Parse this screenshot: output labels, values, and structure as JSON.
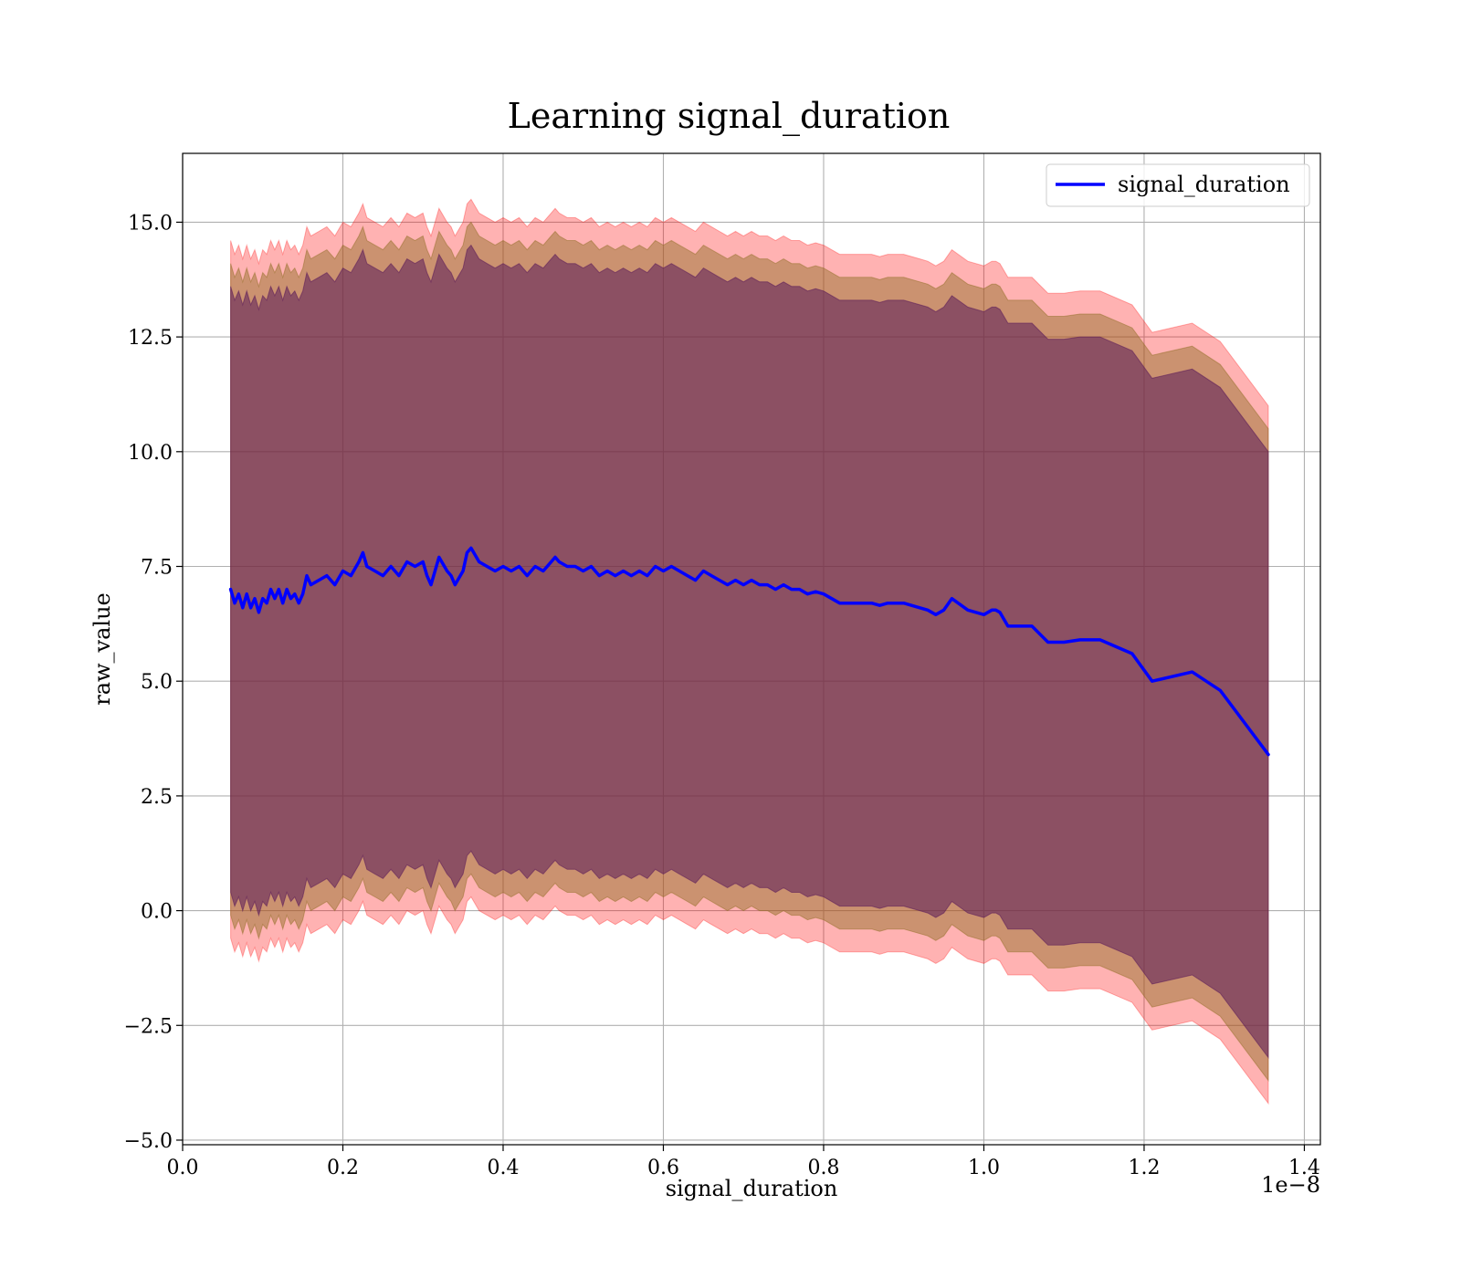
{
  "chart_data": {
    "type": "line",
    "title": "Learning signal_duration",
    "xlabel": "signal_duration",
    "ylabel": "raw_value",
    "x_offset_text": "1e−8",
    "xlim": [
      0.0,
      1.42
    ],
    "ylim": [
      -5.1,
      16.5
    ],
    "x_ticks": [
      0.0,
      0.2,
      0.4,
      0.6,
      0.8,
      1.0,
      1.2,
      1.4
    ],
    "x_tick_labels": [
      "0.0",
      "0.2",
      "0.4",
      "0.6",
      "0.8",
      "1.0",
      "1.2",
      "1.4"
    ],
    "y_ticks": [
      -5.0,
      -2.5,
      0.0,
      2.5,
      5.0,
      7.5,
      10.0,
      12.5,
      15.0
    ],
    "y_tick_labels": [
      "−5.0",
      "−2.5",
      "0.0",
      "2.5",
      "5.0",
      "7.5",
      "10.0",
      "12.5",
      "15.0"
    ],
    "grid": true,
    "legend_position": "upper-right",
    "colors": {
      "line": "#0000ff",
      "outer_band": "#ff0000",
      "middle_band": "#8c6a1e",
      "inner_band": "#5a1a5a"
    },
    "series": [
      {
        "name": "signal_duration",
        "x": [
          0.06,
          0.065,
          0.07,
          0.075,
          0.08,
          0.085,
          0.09,
          0.095,
          0.1,
          0.105,
          0.11,
          0.115,
          0.12,
          0.125,
          0.13,
          0.135,
          0.14,
          0.145,
          0.15,
          0.155,
          0.16,
          0.17,
          0.18,
          0.19,
          0.2,
          0.21,
          0.22,
          0.225,
          0.23,
          0.24,
          0.25,
          0.26,
          0.27,
          0.28,
          0.29,
          0.3,
          0.305,
          0.31,
          0.32,
          0.33,
          0.335,
          0.34,
          0.35,
          0.355,
          0.36,
          0.37,
          0.38,
          0.39,
          0.4,
          0.41,
          0.42,
          0.43,
          0.44,
          0.45,
          0.46,
          0.465,
          0.47,
          0.48,
          0.49,
          0.5,
          0.51,
          0.52,
          0.53,
          0.54,
          0.55,
          0.56,
          0.57,
          0.58,
          0.59,
          0.6,
          0.61,
          0.62,
          0.63,
          0.64,
          0.65,
          0.66,
          0.67,
          0.68,
          0.69,
          0.7,
          0.71,
          0.72,
          0.73,
          0.74,
          0.75,
          0.76,
          0.77,
          0.78,
          0.79,
          0.8,
          0.82,
          0.84,
          0.86,
          0.87,
          0.88,
          0.9,
          0.92,
          0.93,
          0.94,
          0.95,
          0.96,
          0.98,
          1.0,
          1.01,
          1.015,
          1.02,
          1.03,
          1.06,
          1.08,
          1.1,
          1.12,
          1.145,
          1.185,
          1.21,
          1.26,
          1.295,
          1.355
        ],
        "values": [
          7.0,
          6.7,
          6.9,
          6.6,
          6.9,
          6.6,
          6.8,
          6.5,
          6.8,
          6.7,
          7.0,
          6.8,
          7.0,
          6.7,
          7.0,
          6.8,
          6.9,
          6.7,
          6.9,
          7.3,
          7.1,
          7.2,
          7.3,
          7.1,
          7.4,
          7.3,
          7.6,
          7.8,
          7.5,
          7.4,
          7.3,
          7.5,
          7.3,
          7.6,
          7.5,
          7.6,
          7.3,
          7.1,
          7.7,
          7.4,
          7.3,
          7.1,
          7.4,
          7.8,
          7.9,
          7.6,
          7.5,
          7.4,
          7.5,
          7.4,
          7.5,
          7.3,
          7.5,
          7.4,
          7.6,
          7.7,
          7.6,
          7.5,
          7.5,
          7.4,
          7.5,
          7.3,
          7.4,
          7.3,
          7.4,
          7.3,
          7.4,
          7.3,
          7.5,
          7.4,
          7.5,
          7.4,
          7.3,
          7.2,
          7.4,
          7.3,
          7.2,
          7.1,
          7.2,
          7.1,
          7.2,
          7.1,
          7.1,
          7.0,
          7.1,
          7.0,
          7.0,
          6.9,
          6.95,
          6.9,
          6.7,
          6.7,
          6.7,
          6.65,
          6.7,
          6.7,
          6.6,
          6.55,
          6.45,
          6.55,
          6.8,
          6.55,
          6.45,
          6.55,
          6.55,
          6.5,
          6.2,
          6.2,
          5.85,
          5.85,
          5.9,
          5.9,
          5.6,
          5.0,
          5.2,
          4.8,
          3.4
        ]
      }
    ],
    "bands": [
      {
        "level": "outer",
        "half_width": 7.6
      },
      {
        "level": "middle",
        "half_width": 7.1
      },
      {
        "level": "inner",
        "half_width": 6.6
      }
    ]
  }
}
